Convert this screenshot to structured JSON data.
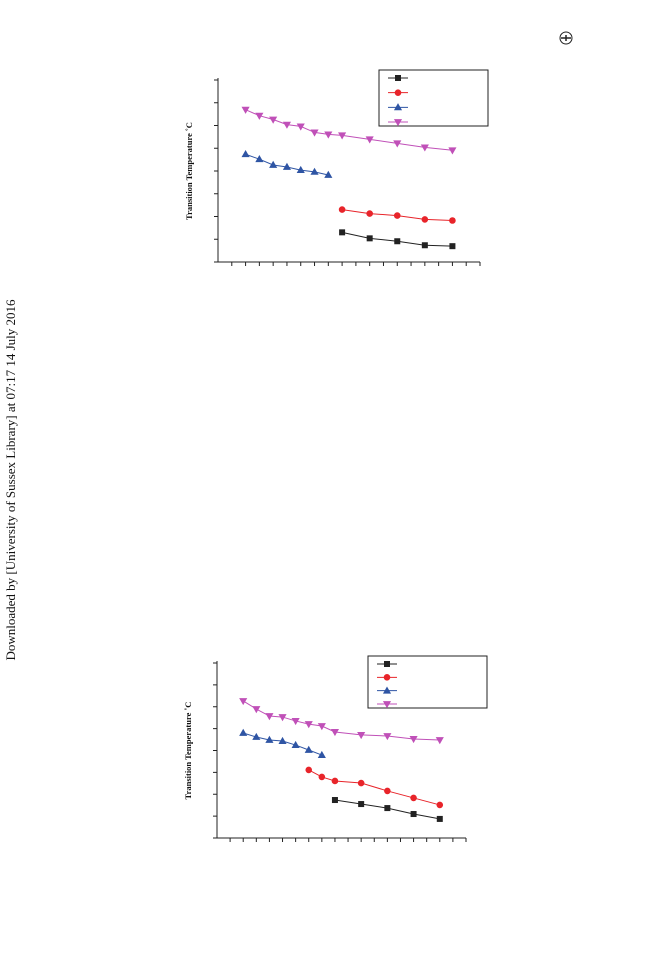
{
  "watermark": "Downloaded by [University of Sussex Library] at 07:17 14 July 2016",
  "chart_data": [
    {
      "type": "line",
      "y_label": "Transition Temperature ˚C",
      "x": [
        2,
        3,
        4,
        5,
        6,
        7,
        8,
        9,
        11,
        13,
        15,
        17
      ],
      "xlim": [
        0,
        19
      ],
      "ylim": [
        0,
        100
      ],
      "series": [
        {
          "color": "#222222",
          "marker": "square",
          "values": [
            null,
            null,
            null,
            null,
            null,
            null,
            null,
            16.3,
            13,
            11.4,
            9.2,
            8.7
          ]
        },
        {
          "color": "#e8242a",
          "marker": "circle",
          "values": [
            null,
            null,
            null,
            null,
            null,
            null,
            null,
            28.8,
            26.6,
            25.5,
            23.4,
            22.8
          ]
        },
        {
          "color": "#2f55a4",
          "marker": "triangle-up",
          "values": [
            59.2,
            56.5,
            53.3,
            52.2,
            50.5,
            49.5,
            47.8,
            null,
            null,
            null,
            null,
            null
          ]
        },
        {
          "color": "#c050b8",
          "marker": "triangle-down",
          "values": [
            83.7,
            80.4,
            78.3,
            75.5,
            74.5,
            71.2,
            70.1,
            69.6,
            67.4,
            65.2,
            63,
            61.4
          ]
        }
      ]
    },
    {
      "type": "line",
      "y_label": "Transition Temperature ˚C",
      "x": [
        2,
        3,
        4,
        5,
        6,
        7,
        8,
        9,
        11,
        13,
        15,
        17
      ],
      "xlim": [
        0,
        19
      ],
      "ylim": [
        0,
        100
      ],
      "series": [
        {
          "color": "#222222",
          "marker": "square",
          "values": [
            null,
            null,
            null,
            null,
            null,
            null,
            null,
            21.7,
            19.4,
            17.1,
            13.7,
            10.9
          ]
        },
        {
          "color": "#e8242a",
          "marker": "circle",
          "values": [
            null,
            null,
            null,
            null,
            null,
            38.9,
            34.9,
            32.6,
            31.4,
            26.9,
            22.9,
            18.9
          ]
        },
        {
          "color": "#2f55a4",
          "marker": "triangle-up",
          "values": [
            60,
            57.7,
            56,
            55.4,
            53.1,
            50.3,
            47.4,
            null,
            null,
            null,
            null,
            null
          ]
        },
        {
          "color": "#c050b8",
          "marker": "triangle-down",
          "values": [
            78.3,
            73.7,
            69.7,
            69.1,
            66.9,
            65.1,
            64,
            60.6,
            58.9,
            58.3,
            56.6,
            56
          ]
        }
      ]
    }
  ]
}
